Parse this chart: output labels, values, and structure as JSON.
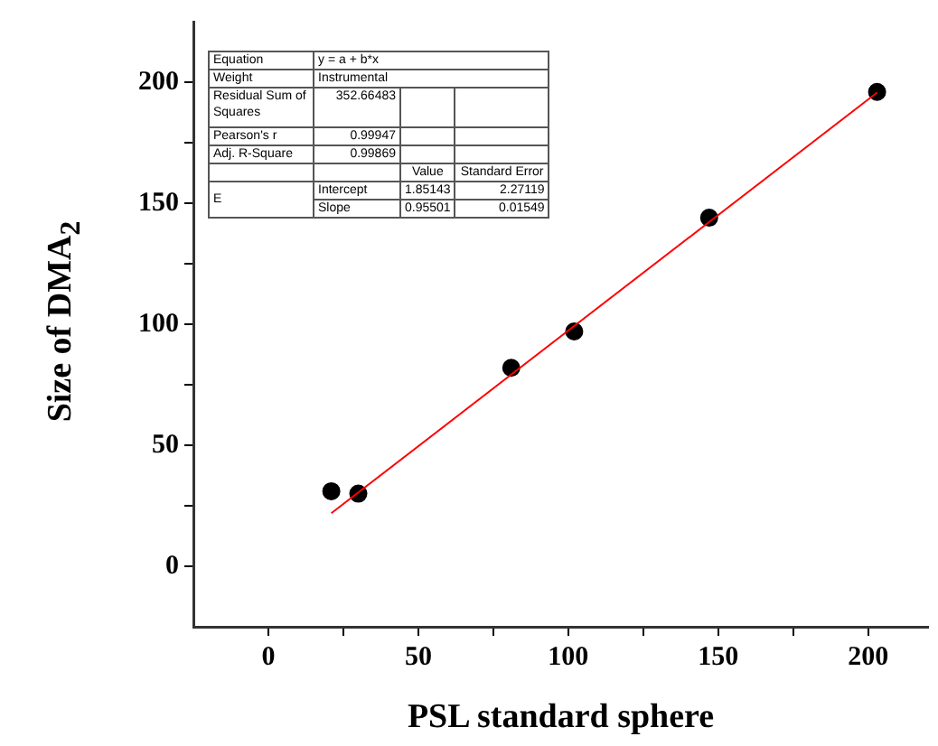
{
  "chart_data": {
    "type": "scatter",
    "xlabel": "PSL standard sphere",
    "ylabel": "Size of DMA$_{2}$",
    "xlim": [
      -25,
      220
    ],
    "xticks": [
      0,
      {
        "value": 25,
        "label": null
      },
      50,
      {
        "value": 75,
        "label": null
      },
      100,
      {
        "value": 125,
        "label": null
      },
      150,
      {
        "value": 175,
        "label": null
      },
      200
    ],
    "ylim": [
      -25,
      225
    ],
    "yticks": [
      0,
      {
        "value": 25,
        "label": null
      },
      50,
      {
        "value": 75,
        "label": null
      },
      100,
      {
        "value": 125,
        "label": null
      },
      150,
      {
        "value": 175,
        "label": null
      },
      200
    ],
    "grid": false,
    "legend": false,
    "series": [
      {
        "type": "scatter",
        "color": "#000000",
        "marker": "circle",
        "x": [
          21,
          30,
          81,
          102,
          147,
          203
        ],
        "values": [
          31,
          30,
          82,
          97,
          144,
          196
        ]
      },
      {
        "type": "line",
        "color": "#ff0000",
        "marker": "none",
        "x": [
          21,
          203
        ],
        "values": [
          21.9,
          195.7
        ]
      }
    ],
    "annotations": [
      "Equation",
      "y = a + b*x",
      "Weight",
      "Instrumental",
      "Residual Sum of Squares",
      "352.66483",
      "Pearson's r",
      "0.99947",
      "Adj. R-Square",
      "0.99869",
      "Value",
      "Standard Error",
      "E",
      "Intercept",
      "1.85143",
      "2.27119",
      "Slope",
      "0.95501",
      "0.01549"
    ]
  }
}
